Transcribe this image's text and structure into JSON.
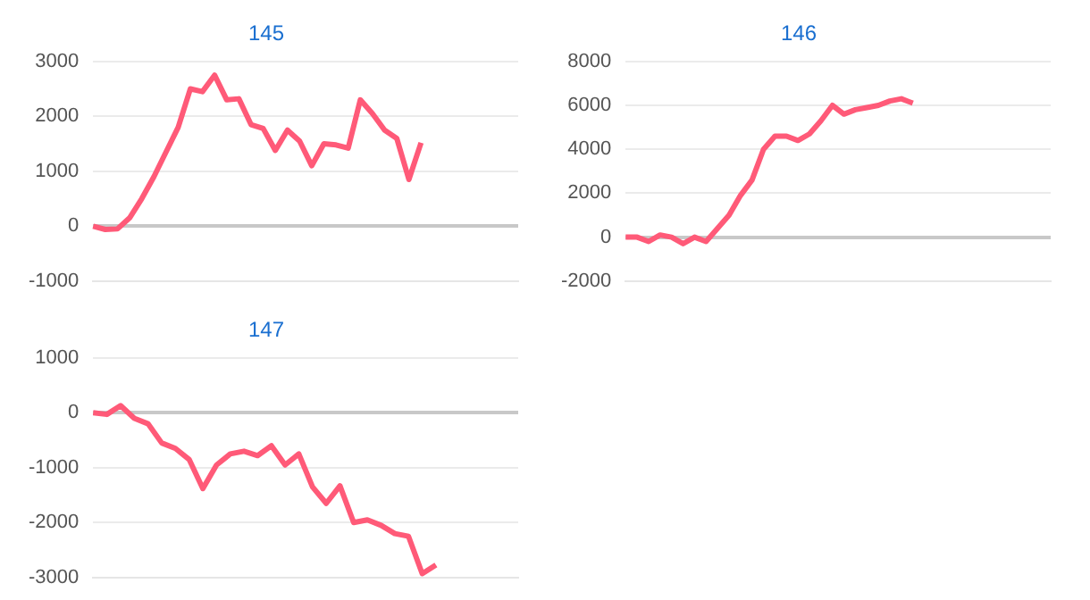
{
  "chart_data": [
    {
      "type": "line",
      "title": "145",
      "categories": [
        null,
        null,
        null,
        null,
        null,
        null,
        null,
        null,
        null,
        null,
        null,
        null,
        null,
        null,
        null,
        null,
        null,
        null,
        null,
        null,
        null,
        null,
        null,
        null,
        null,
        null,
        null,
        null,
        null,
        null,
        null,
        null,
        null,
        null,
        null,
        null
      ],
      "series": [
        {
          "color": "#ff5a78",
          "values": [
            0,
            -60,
            -50,
            150,
            500,
            900,
            1350,
            1800,
            2500,
            2450,
            2750,
            2300,
            2320,
            1850,
            1780,
            1380,
            1750,
            1550,
            1100,
            1500,
            1480,
            1420,
            2300,
            2050,
            1750,
            1600,
            850,
            1520,
            null,
            null,
            null,
            null,
            null,
            null,
            null,
            null
          ]
        }
      ],
      "ylim": [
        -1000,
        3000
      ],
      "yticks": [
        -1000,
        0,
        1000,
        2000,
        3000
      ],
      "grid": "y",
      "tick_labels": "y",
      "marker": "none"
    },
    {
      "type": "line",
      "title": "146",
      "categories": [
        null,
        null,
        null,
        null,
        null,
        null,
        null,
        null,
        null,
        null,
        null,
        null,
        null,
        null,
        null,
        null,
        null,
        null,
        null,
        null,
        null,
        null,
        null,
        null,
        null,
        null,
        null,
        null,
        null,
        null,
        null,
        null,
        null,
        null,
        null,
        null,
        null,
        null
      ],
      "series": [
        {
          "color": "#ff5a78",
          "values": [
            0,
            0,
            -200,
            100,
            0,
            -300,
            0,
            -200,
            400,
            1000,
            1900,
            2600,
            4000,
            4600,
            4600,
            4400,
            4700,
            5300,
            6000,
            5600,
            5800,
            5900,
            6000,
            6200,
            6300,
            6100,
            null,
            null,
            null,
            null,
            null,
            null,
            null,
            null,
            null,
            null,
            null,
            null
          ]
        }
      ],
      "ylim": [
        -2000,
        8000
      ],
      "yticks": [
        -2000,
        0,
        2000,
        4000,
        6000,
        8000
      ],
      "grid": "y",
      "tick_labels": "y",
      "marker": "none"
    },
    {
      "type": "line",
      "title": "147",
      "categories": [
        null,
        null,
        null,
        null,
        null,
        null,
        null,
        null,
        null,
        null,
        null,
        null,
        null,
        null,
        null,
        null,
        null,
        null,
        null,
        null,
        null,
        null,
        null,
        null,
        null,
        null,
        null,
        null,
        null,
        null,
        null,
        null
      ],
      "series": [
        {
          "color": "#ff5a78",
          "values": [
            0,
            -30,
            130,
            -100,
            -200,
            -550,
            -650,
            -850,
            -1380,
            -950,
            -750,
            -700,
            -780,
            -600,
            -950,
            -750,
            -1350,
            -1650,
            -1330,
            -2000,
            -1950,
            -2050,
            -2200,
            -2250,
            -2930,
            -2770,
            null,
            null,
            null,
            null,
            null,
            null
          ]
        }
      ],
      "ylim": [
        -3000,
        1000
      ],
      "yticks": [
        -3000,
        -2000,
        -1000,
        0,
        1000
      ],
      "grid": "y",
      "tick_labels": "y",
      "marker": "none"
    }
  ]
}
